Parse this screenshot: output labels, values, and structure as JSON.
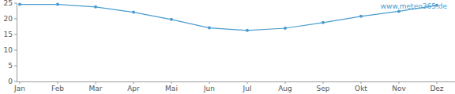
{
  "chart_data": {
    "type": "line",
    "categories": [
      "Jan",
      "Feb",
      "Mar",
      "Apr",
      "Mai",
      "Jun",
      "Jul",
      "Aug",
      "Sep",
      "Okt",
      "Nov",
      "Dez"
    ],
    "values": [
      24.6,
      24.6,
      23.8,
      22.1,
      19.8,
      17.1,
      16.3,
      17.0,
      18.8,
      20.8,
      22.4,
      24.3
    ],
    "color": "#4a9ccf",
    "marker": "circle",
    "ylim": [
      0,
      25
    ],
    "yticks": [
      0,
      5,
      10,
      15,
      20,
      25
    ],
    "grid": false,
    "annotations": [
      "www.meteo365.de"
    ]
  }
}
